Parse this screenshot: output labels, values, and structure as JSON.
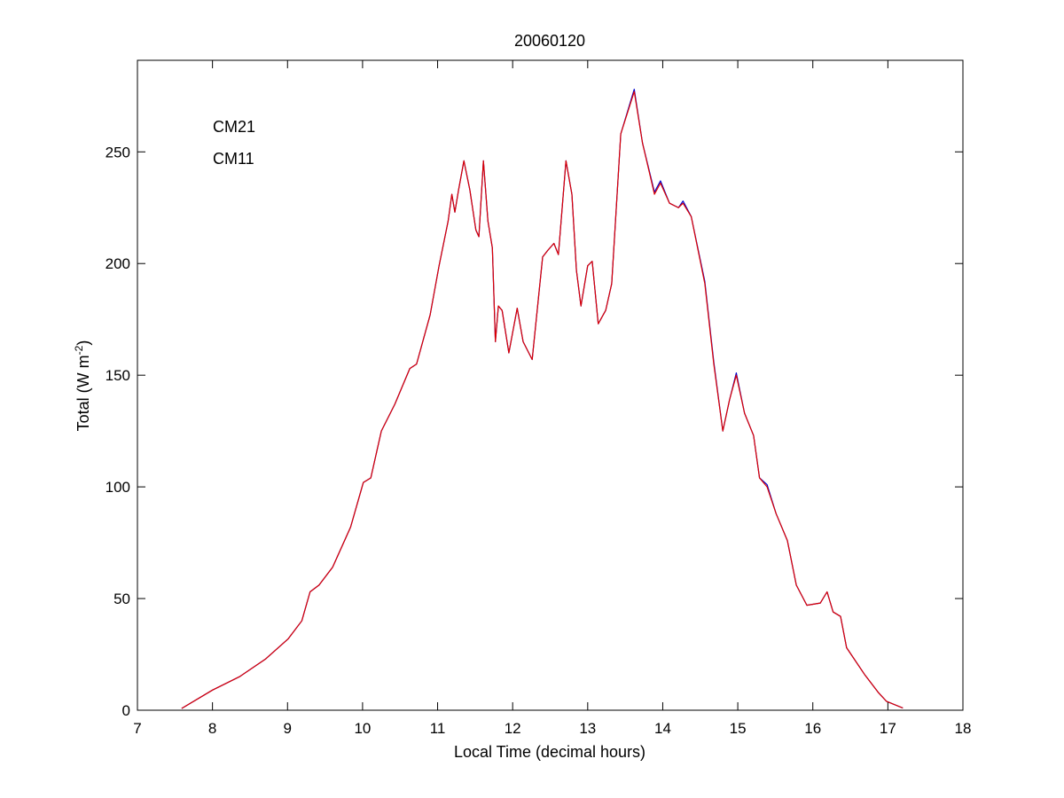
{
  "chart_data": {
    "type": "line",
    "title": "20060120",
    "xlabel": "Local Time (decimal hours)",
    "ylabel": "Total (W m",
    "ylabel_sup": "-2",
    "ylabel_tail": ")",
    "xlim": [
      7,
      18
    ],
    "ylim": [
      0,
      291
    ],
    "xticks": [
      "7",
      "8",
      "9",
      "10",
      "11",
      "12",
      "13",
      "14",
      "15",
      "16",
      "17",
      "18"
    ],
    "yticks": [
      "0",
      "50",
      "100",
      "150",
      "200",
      "250"
    ],
    "legend_placement": "top-left",
    "grid": false,
    "x": [
      7.59,
      8.0,
      8.36,
      8.71,
      9.01,
      9.19,
      9.3,
      9.42,
      9.6,
      9.84,
      10.01,
      10.11,
      10.25,
      10.43,
      10.63,
      10.72,
      10.9,
      11.02,
      11.14,
      11.19,
      11.23,
      11.28,
      11.35,
      11.43,
      11.51,
      11.55,
      11.61,
      11.67,
      11.73,
      11.77,
      11.81,
      11.86,
      11.95,
      12.06,
      12.14,
      12.26,
      12.4,
      12.47,
      12.55,
      12.61,
      12.71,
      12.79,
      12.85,
      12.91,
      13.0,
      13.06,
      13.14,
      13.24,
      13.32,
      13.44,
      13.62,
      13.73,
      13.89,
      13.97,
      14.09,
      14.21,
      14.27,
      14.38,
      14.56,
      14.68,
      14.8,
      14.89,
      14.98,
      15.09,
      15.21,
      15.29,
      15.39,
      15.51,
      15.66,
      15.78,
      15.92,
      16.1,
      16.19,
      16.27,
      16.37,
      16.45,
      16.69,
      16.87,
      16.98,
      17.2
    ],
    "series": [
      {
        "name": "CM21",
        "color": "#0000cc",
        "values": [
          0.8,
          9,
          15,
          23,
          32,
          40,
          53,
          56,
          64,
          82,
          102,
          104,
          125,
          137,
          153,
          155,
          177,
          199,
          219,
          231,
          223,
          233,
          246,
          233,
          215,
          212,
          246,
          219,
          207,
          165,
          181,
          179,
          160,
          180,
          165,
          157,
          203,
          206,
          209,
          204,
          246,
          231,
          197,
          181,
          199,
          201,
          173,
          179,
          191,
          258,
          278,
          254,
          232,
          237,
          227,
          225,
          228,
          221,
          192,
          156,
          125,
          139,
          151,
          133,
          123,
          104,
          101,
          88,
          76,
          56,
          47,
          48,
          53,
          44,
          42,
          28,
          16,
          8,
          4,
          1
        ]
      },
      {
        "name": "CM11",
        "color": "#dd0000",
        "values": [
          0.8,
          9,
          15,
          23,
          32,
          40,
          53,
          56,
          64,
          82,
          102,
          104,
          125,
          137,
          153,
          155,
          177,
          199,
          219,
          231,
          223,
          233,
          246,
          233,
          215,
          212,
          246,
          219,
          207,
          165,
          181,
          179,
          160,
          180,
          165,
          157,
          203,
          206,
          209,
          204,
          246,
          231,
          197,
          181,
          199,
          201,
          173,
          179,
          191,
          258,
          277,
          254,
          231,
          236,
          227,
          225,
          227,
          221,
          191,
          155,
          125,
          139,
          150,
          133,
          123,
          104,
          100,
          88,
          76,
          56,
          47,
          48,
          53,
          44,
          42,
          28,
          16,
          8,
          4,
          1
        ]
      }
    ]
  }
}
